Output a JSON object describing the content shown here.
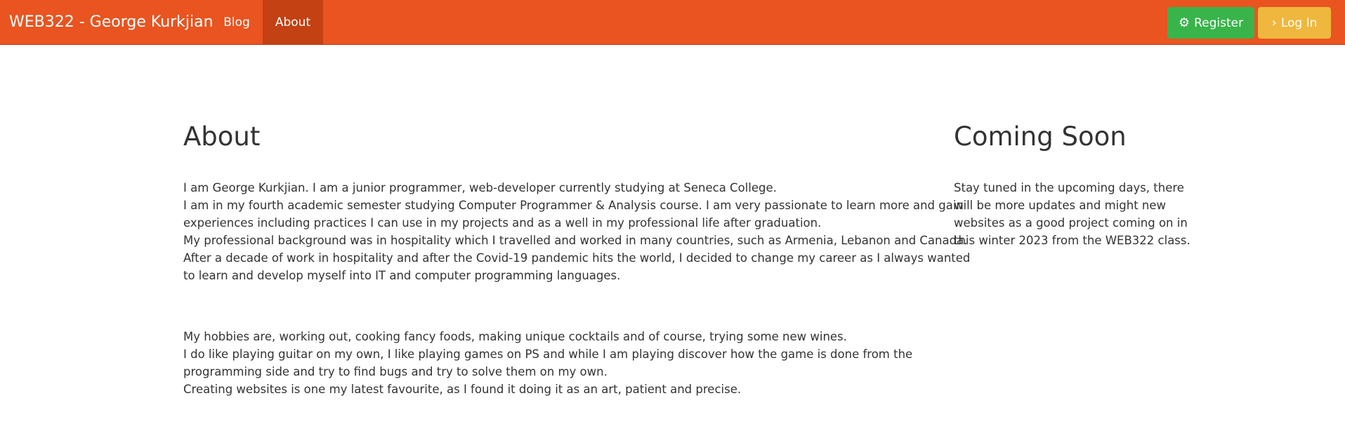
{
  "navbar": {
    "brand": "WEB322 - George Kurkjian",
    "links": [
      {
        "label": "Blog",
        "active": false
      },
      {
        "label": "About",
        "active": true
      }
    ],
    "register": {
      "label": "Register",
      "icon": "gear-icon"
    },
    "login": {
      "label": "Log In",
      "icon": "chevron-right-icon"
    },
    "colors": {
      "navbar": "#e95420",
      "active": "#c34113",
      "success": "#38b44a",
      "warning": "#efb73e"
    }
  },
  "about": {
    "heading": "About",
    "lines1": [
      "I am George Kurkjian. I am a junior programmer, web-developer currently studying at Seneca College.",
      "I am in my fourth academic semester studying Computer Programmer & Analysis course. I am very passionate to learn more and gain",
      "experiences including practices I can use in my projects and as a well in my professional life after graduation.",
      "My professional background was in hospitality which I travelled and worked in many countries, such as Armenia, Lebanon and Canada.",
      "After a decade of work in hospitality and after the Covid-19 pandemic hits the world, I decided to change my career as I always wanted",
      "to learn and develop myself into IT and computer programming languages."
    ],
    "lines2": [
      "My hobbies are, working out, cooking fancy foods, making unique cocktails and of course, trying some new wines.",
      "I do like playing guitar on my own, I like playing games on PS and while I am playing discover how the game is done from the",
      "programming side and try to find bugs and try to solve them on my own.",
      "Creating websites is one my latest favourite, as I found it doing it as an art, patient and precise."
    ]
  },
  "coming_soon": {
    "heading": "Coming Soon",
    "lines": [
      "Stay tuned in the upcoming days, there",
      "will be more updates and might new",
      "websites as a good project coming on in",
      "this winter 2023 from the WEB322 class."
    ]
  }
}
